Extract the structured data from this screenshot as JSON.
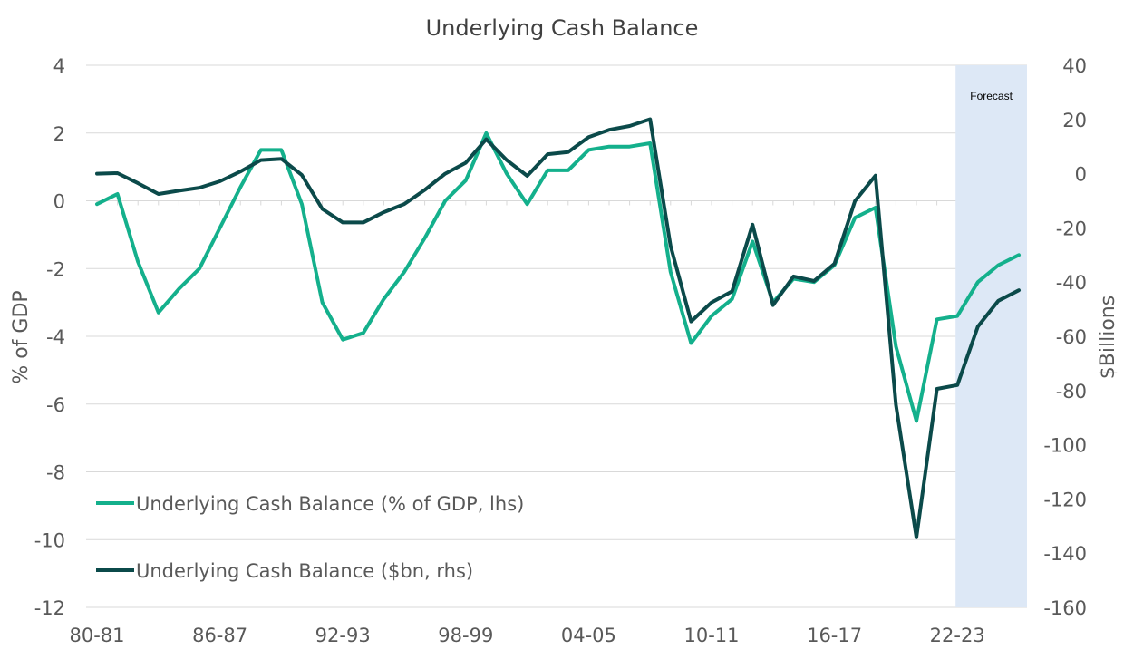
{
  "chart_data": {
    "type": "line",
    "title": "Underlying Cash Balance",
    "ylabel_left": "% of GDP",
    "ylabel_right": "$Billions",
    "ylim_left": [
      -12,
      4
    ],
    "ylim_right": [
      -160,
      40
    ],
    "yticks_left": [
      "4",
      "2",
      "0",
      "-2",
      "-4",
      "-6",
      "-8",
      "-10",
      "-12"
    ],
    "yticks_right": [
      "40",
      "20",
      "0",
      "-20",
      "-40",
      "-60",
      "-80",
      "-100",
      "-120",
      "-140",
      "-160"
    ],
    "x_categories": [
      "80-81",
      "81-82",
      "82-83",
      "83-84",
      "84-85",
      "85-86",
      "86-87",
      "87-88",
      "88-89",
      "89-90",
      "90-91",
      "91-92",
      "92-93",
      "93-94",
      "94-95",
      "95-96",
      "96-97",
      "97-98",
      "98-99",
      "99-00",
      "00-01",
      "01-02",
      "02-03",
      "03-04",
      "04-05",
      "05-06",
      "06-07",
      "07-08",
      "08-09",
      "09-10",
      "10-11",
      "11-12",
      "12-13",
      "13-14",
      "14-15",
      "15-16",
      "16-17",
      "17-18",
      "18-19",
      "19-20",
      "20-21",
      "21-22",
      "22-23",
      "23-24",
      "24-25",
      "25-26"
    ],
    "x_tick_labels": [
      "80-81",
      "86-87",
      "92-93",
      "98-99",
      "04-05",
      "10-11",
      "16-17",
      "22-23"
    ],
    "forecast_label": "Forecast",
    "forecast_start": "22-23",
    "forecast_end": "25-26",
    "legend_position": "bottom-left",
    "grid": true,
    "series": [
      {
        "name": "Underlying Cash Balance (% of GDP, lhs)",
        "axis": "left",
        "color": "#14b08c",
        "values": [
          -0.1,
          0.2,
          -1.8,
          -3.3,
          -2.6,
          -2.0,
          -0.8,
          0.4,
          1.5,
          1.5,
          -0.1,
          -3.0,
          -4.1,
          -3.9,
          -2.9,
          -2.1,
          -1.1,
          0.0,
          0.6,
          2.0,
          0.8,
          -0.1,
          0.9,
          0.9,
          1.5,
          1.6,
          1.6,
          1.7,
          -2.1,
          -4.2,
          -3.4,
          -2.9,
          -1.2,
          -3.0,
          -2.3,
          -2.4,
          -1.9,
          -0.5,
          -0.2,
          -4.3,
          -6.5,
          -3.5,
          -3.4,
          -2.4,
          -1.9,
          -1.6
        ]
      },
      {
        "name": "Underlying Cash Balance ($bn, rhs)",
        "axis": "right",
        "color": "#0b4a4a",
        "values": [
          0.0,
          0.2,
          -3.5,
          -7.5,
          -6.3,
          -5.2,
          -2.8,
          0.8,
          5.0,
          5.5,
          -0.5,
          -13.0,
          -18.0,
          -18.0,
          -14.2,
          -11.2,
          -6.0,
          0.0,
          4.0,
          12.7,
          5.0,
          -0.8,
          7.2,
          8.0,
          13.5,
          16.2,
          17.6,
          20.1,
          -26.7,
          -54.5,
          -47.5,
          -43.4,
          -18.8,
          -48.5,
          -37.9,
          -39.6,
          -33.2,
          -10.1,
          -0.7,
          -85.3,
          -134.2,
          -79.4,
          -78.0,
          -56.4,
          -46.9,
          -43.0
        ]
      }
    ]
  }
}
